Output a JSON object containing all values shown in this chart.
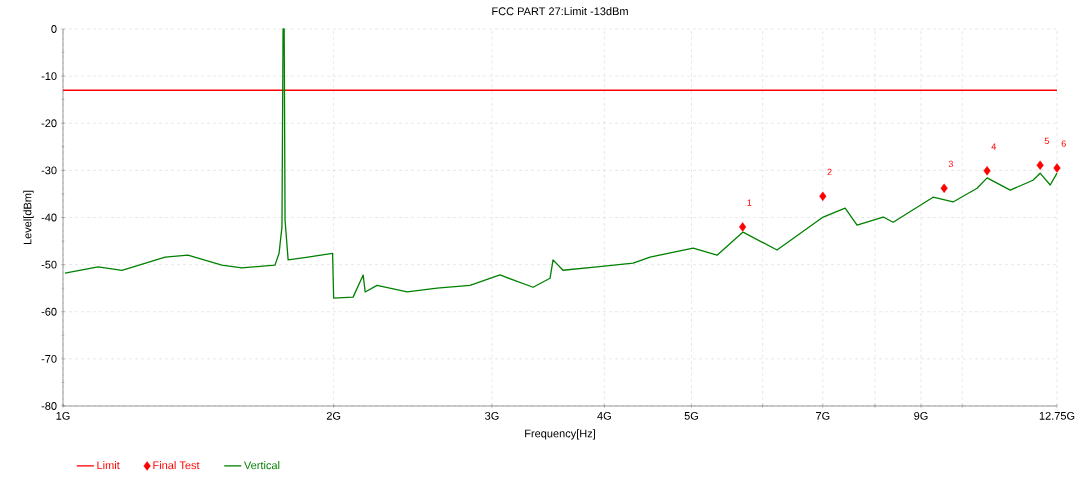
{
  "chart_data": {
    "type": "line",
    "title": "FCC PART 27:Limit -13dBm",
    "xlabel": "Frequency[Hz]",
    "ylabel": "Level[dBm]",
    "log": "x",
    "grid": true,
    "legend": "bottom",
    "xlim": [
      1,
      12.75
    ],
    "ylim": [
      -80,
      0
    ],
    "xticks": [
      {
        "value": 1,
        "label": "1G"
      },
      {
        "value": 2,
        "label": "2G"
      },
      {
        "value": 3,
        "label": "3G"
      },
      {
        "value": 4,
        "label": "4G"
      },
      {
        "value": 5,
        "label": "5G"
      },
      {
        "value": 6,
        "label": null
      },
      {
        "value": 7,
        "label": "7G"
      },
      {
        "value": 8,
        "label": null
      },
      {
        "value": 9,
        "label": "9G"
      },
      {
        "value": 10,
        "label": null
      },
      {
        "value": 12.75,
        "label": "12.75G"
      }
    ],
    "yticks": [
      -80,
      -70,
      -60,
      -50,
      -40,
      -30,
      -20,
      -10,
      0
    ],
    "series": [
      {
        "name": "Limit",
        "type": "line",
        "color": "#ff0000",
        "x": [
          1,
          12.75
        ],
        "values": [
          -13,
          -13
        ]
      },
      {
        "name": "Final Test",
        "type": "scatter",
        "marker": "diamond",
        "color": "#ff0000",
        "x": [
          5.7,
          7.0,
          9.55,
          10.66,
          12.21,
          12.75
        ],
        "values": [
          -42.0,
          -35.5,
          -33.8,
          -30.1,
          -28.9,
          -29.5
        ]
      },
      {
        "name": "Vertical",
        "color": "#008000",
        "x": [
          1.005,
          1.094,
          1.163,
          1.299,
          1.377,
          1.502,
          1.581,
          1.721,
          1.739,
          1.752,
          1.757,
          1.762,
          1.766,
          1.78,
          1.873,
          1.995,
          2.0,
          2.102,
          2.157,
          2.168,
          2.235,
          2.414,
          2.606,
          2.836,
          3.062,
          3.333,
          3.481,
          3.508,
          3.599,
          3.926,
          4.306,
          4.497,
          5.022,
          5.339,
          5.706,
          6.225,
          7.006,
          7.412,
          7.642,
          8.17,
          8.381,
          9.284,
          9.772,
          10.39,
          10.66,
          11.31,
          11.99,
          12.21,
          12.53,
          12.75
        ],
        "values": [
          -51.8,
          -50.5,
          -51.2,
          -48.4,
          -48.0,
          -50.1,
          -50.7,
          -50.1,
          -47.6,
          -42,
          0,
          0,
          -40.6,
          -49,
          -48.4,
          -47.6,
          -57.1,
          -56.9,
          -52.2,
          -55.8,
          -54.4,
          -55.8,
          -55,
          -54.4,
          -52.2,
          -54.8,
          -52.9,
          -49,
          -51.2,
          -50.5,
          -49.7,
          -48.4,
          -46.5,
          -48,
          -43.1,
          -46.9,
          -39.9,
          -38,
          -41.6,
          -39.9,
          -41,
          -35.7,
          -36.7,
          -33.8,
          -31.6,
          -34.2,
          -32.1,
          -30.6,
          -33.1,
          -30.6
        ]
      }
    ],
    "annotations": [
      {
        "text": "1",
        "x": 5.7,
        "y": -42.0
      },
      {
        "text": "2",
        "x": 7.0,
        "y": -35.5
      },
      {
        "text": "3",
        "x": 9.55,
        "y": -33.8
      },
      {
        "text": "4",
        "x": 10.66,
        "y": -30.1
      },
      {
        "text": "5",
        "x": 12.21,
        "y": -28.9
      },
      {
        "text": "6",
        "x": 12.75,
        "y": -29.5
      }
    ]
  }
}
